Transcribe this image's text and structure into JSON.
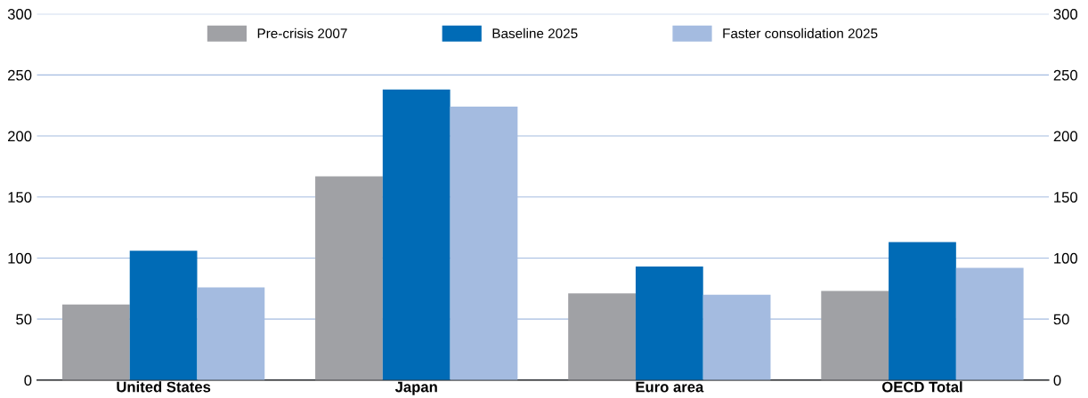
{
  "chart_data": {
    "type": "bar",
    "categories": [
      "United States",
      "Japan",
      "Euro area",
      "OECD Total"
    ],
    "series": [
      {
        "name": "Pre-crisis 2007",
        "color": "#a0a1a5",
        "values": [
          62,
          167,
          71,
          73
        ]
      },
      {
        "name": "Baseline 2025",
        "color": "#006bb6",
        "values": [
          106,
          238,
          93,
          113
        ]
      },
      {
        "name": "Faster consolidation 2025",
        "color": "#a4bbe0",
        "values": [
          76,
          224,
          70,
          92
        ]
      }
    ],
    "ylim": [
      0,
      300
    ],
    "yticks": [
      0,
      50,
      100,
      150,
      200,
      250,
      300
    ],
    "y2lim": [
      0,
      300
    ],
    "y2ticks": [
      0,
      50,
      100,
      150,
      200,
      250,
      300
    ],
    "grid": "y",
    "legend": "top"
  }
}
